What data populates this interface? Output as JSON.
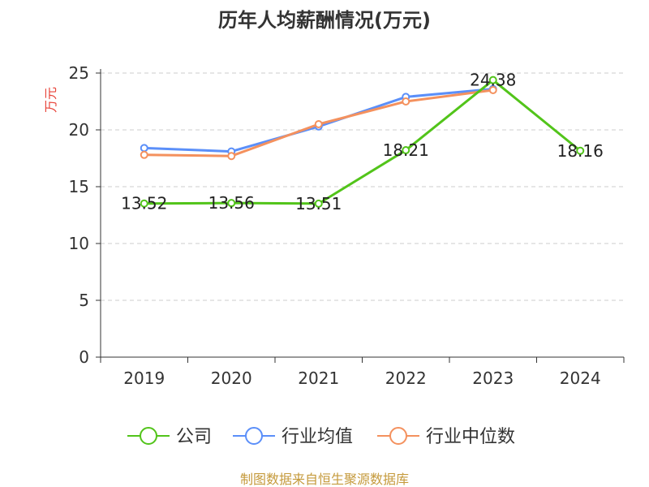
{
  "chart_data": {
    "type": "line",
    "title": "历年人均薪酬情况(万元)",
    "ylabel": "万元",
    "categories": [
      "2019",
      "2020",
      "2021",
      "2022",
      "2023",
      "2024"
    ],
    "ylim": [
      0,
      25
    ],
    "yticks": [
      0,
      5,
      10,
      15,
      20,
      25
    ],
    "grid": true,
    "legend_position": "bottom",
    "series": [
      {
        "name": "公司",
        "color": "#52c41a",
        "values": [
          13.52,
          13.56,
          13.51,
          18.21,
          24.38,
          18.16
        ],
        "labels": [
          "13.52",
          "13.56",
          "13.51",
          "18.21",
          "24.38",
          "18.16"
        ]
      },
      {
        "name": "行业均值",
        "color": "#5b8ff9",
        "values": [
          18.4,
          18.1,
          20.3,
          22.9,
          23.6,
          null
        ]
      },
      {
        "name": "行业中位数",
        "color": "#f4915e",
        "values": [
          17.8,
          17.7,
          20.5,
          22.5,
          23.5,
          null
        ]
      }
    ]
  },
  "ylabel_color": "#e8443a",
  "source": {
    "text": "制图数据来自恒生聚源数据库",
    "color": "#c59a3c"
  }
}
